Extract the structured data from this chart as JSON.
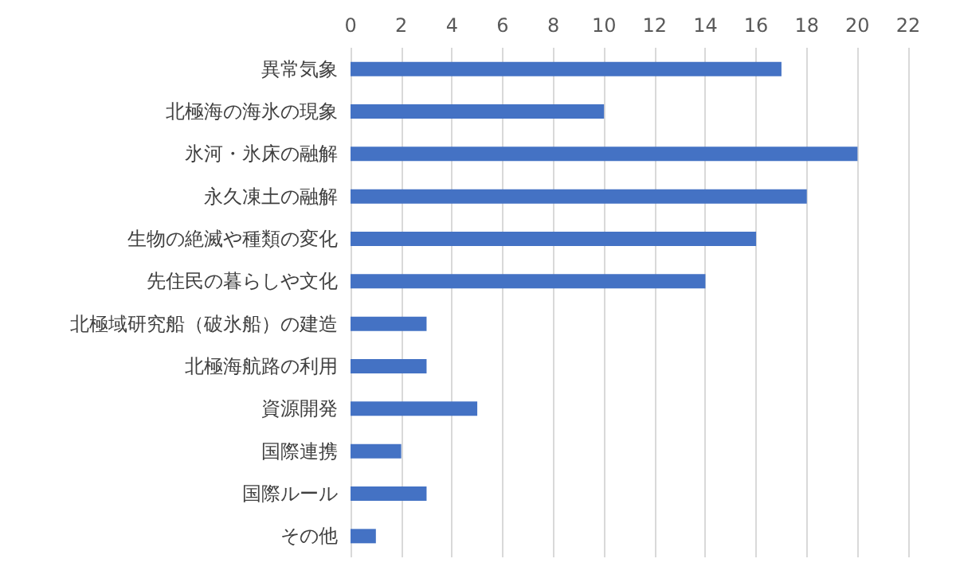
{
  "chart_data": {
    "type": "bar",
    "orientation": "horizontal",
    "categories": [
      "異常気象",
      "北極海の海氷の現象",
      "氷河・氷床の融解",
      "永久凍土の融解",
      "生物の絶滅や種類の変化",
      "先住民の暮らしや文化",
      "北極域研究船（破氷船）の建造",
      "北極海航路の利用",
      "資源開発",
      "国際連携",
      "国際ルール",
      "その他"
    ],
    "values": [
      17,
      10,
      20,
      18,
      16,
      14,
      3,
      3,
      5,
      2,
      3,
      1
    ],
    "color": "#4472c4",
    "xlim": [
      0,
      22
    ],
    "xticks": [
      0,
      2,
      4,
      6,
      8,
      10,
      12,
      14,
      16,
      18,
      20,
      22
    ],
    "grid": "x"
  }
}
